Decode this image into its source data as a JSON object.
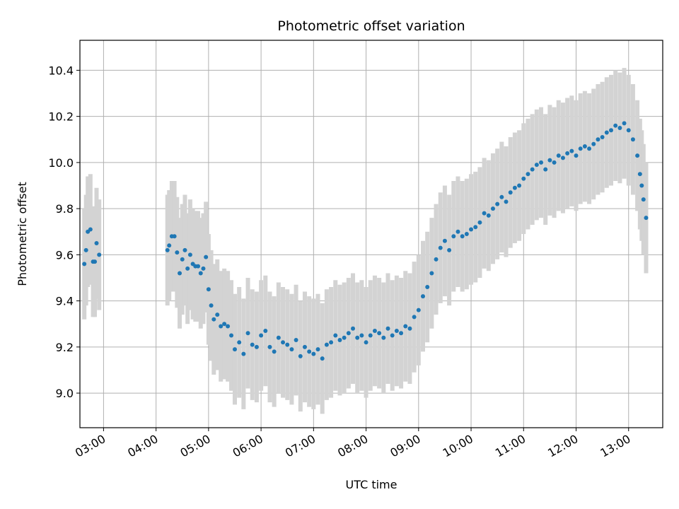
{
  "chart_data": {
    "type": "scatter",
    "title": "Photometric offset variation",
    "xlabel": "UTC time",
    "ylabel": "Photometric offset",
    "xlim": [
      "02:33",
      "13:39"
    ],
    "ylim": [
      8.85,
      10.53
    ],
    "grid": true,
    "legend": "none",
    "x_ticks": [
      "03:00",
      "04:00",
      "05:00",
      "06:00",
      "07:00",
      "08:00",
      "09:00",
      "10:00",
      "11:00",
      "12:00",
      "13:00"
    ],
    "y_ticks": [
      "9.0",
      "9.2",
      "9.4",
      "9.6",
      "9.8",
      "10.0",
      "10.2",
      "10.4"
    ],
    "series": [
      {
        "marker_color": "#1f77b4",
        "errorbar_color": "#d3d3d3",
        "errorbar_halfwidth": 0.24,
        "x": [
          "02:38",
          "02:40",
          "02:42",
          "02:45",
          "02:48",
          "02:50",
          "02:52",
          "02:55",
          "04:13",
          "04:15",
          "04:18",
          "04:21",
          "04:24",
          "04:27",
          "04:30",
          "04:33",
          "04:36",
          "04:39",
          "04:42",
          "04:45",
          "04:48",
          "04:51",
          "04:54",
          "04:57",
          "05:00",
          "05:03",
          "05:06",
          "05:10",
          "05:14",
          "05:18",
          "05:22",
          "05:26",
          "05:30",
          "05:35",
          "05:40",
          "05:45",
          "05:50",
          "05:55",
          "06:00",
          "06:05",
          "06:10",
          "06:15",
          "06:20",
          "06:25",
          "06:30",
          "06:35",
          "06:40",
          "06:45",
          "06:50",
          "06:55",
          "07:00",
          "07:05",
          "07:10",
          "07:15",
          "07:20",
          "07:25",
          "07:30",
          "07:35",
          "07:40",
          "07:45",
          "07:50",
          "07:55",
          "08:00",
          "08:05",
          "08:10",
          "08:15",
          "08:20",
          "08:25",
          "08:30",
          "08:35",
          "08:40",
          "08:45",
          "08:50",
          "08:55",
          "09:00",
          "09:05",
          "09:10",
          "09:15",
          "09:20",
          "09:25",
          "09:30",
          "09:35",
          "09:40",
          "09:45",
          "09:50",
          "09:55",
          "10:00",
          "10:05",
          "10:10",
          "10:15",
          "10:20",
          "10:25",
          "10:30",
          "10:35",
          "10:40",
          "10:45",
          "10:50",
          "10:55",
          "11:00",
          "11:05",
          "11:10",
          "11:15",
          "11:20",
          "11:25",
          "11:30",
          "11:35",
          "11:40",
          "11:45",
          "11:50",
          "11:55",
          "12:00",
          "12:05",
          "12:10",
          "12:15",
          "12:20",
          "12:25",
          "12:30",
          "12:35",
          "12:40",
          "12:45",
          "12:50",
          "12:55",
          "13:00",
          "13:05",
          "13:10",
          "13:13",
          "13:15",
          "13:17",
          "13:20"
        ],
        "y": [
          9.56,
          9.62,
          9.7,
          9.71,
          9.57,
          9.57,
          9.65,
          9.6,
          9.62,
          9.64,
          9.68,
          9.68,
          9.61,
          9.52,
          9.58,
          9.62,
          9.54,
          9.6,
          9.56,
          9.55,
          9.55,
          9.52,
          9.54,
          9.59,
          9.45,
          9.38,
          9.32,
          9.34,
          9.29,
          9.3,
          9.29,
          9.25,
          9.19,
          9.22,
          9.17,
          9.26,
          9.21,
          9.2,
          9.25,
          9.27,
          9.2,
          9.18,
          9.24,
          9.22,
          9.21,
          9.19,
          9.23,
          9.16,
          9.2,
          9.18,
          9.17,
          9.19,
          9.15,
          9.21,
          9.22,
          9.25,
          9.23,
          9.24,
          9.26,
          9.28,
          9.24,
          9.25,
          9.22,
          9.25,
          9.27,
          9.26,
          9.24,
          9.28,
          9.25,
          9.27,
          9.26,
          9.29,
          9.28,
          9.33,
          9.36,
          9.42,
          9.46,
          9.52,
          9.58,
          9.63,
          9.66,
          9.62,
          9.68,
          9.7,
          9.68,
          9.69,
          9.71,
          9.72,
          9.74,
          9.78,
          9.77,
          9.8,
          9.82,
          9.85,
          9.83,
          9.87,
          9.89,
          9.9,
          9.93,
          9.95,
          9.97,
          9.99,
          10.0,
          9.97,
          10.01,
          10.0,
          10.03,
          10.02,
          10.04,
          10.05,
          10.03,
          10.06,
          10.07,
          10.06,
          10.08,
          10.1,
          10.11,
          10.13,
          10.14,
          10.16,
          10.15,
          10.17,
          10.14,
          10.1,
          10.03,
          9.95,
          9.9,
          9.84,
          9.76
        ]
      }
    ]
  }
}
